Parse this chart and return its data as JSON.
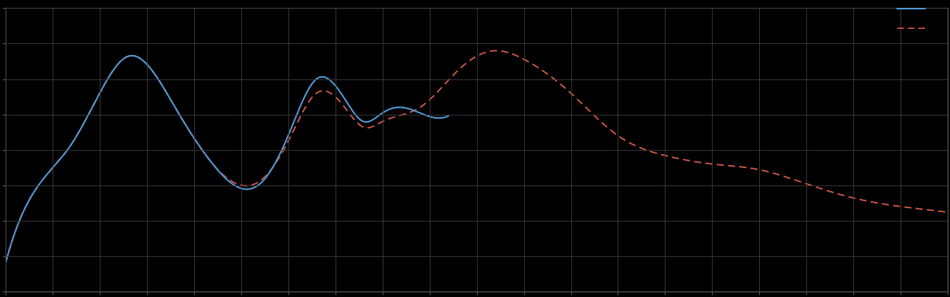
{
  "background_color": "#000000",
  "plot_bg_color": "#000000",
  "grid_color": "#3a3a3a",
  "axis_color": "#555555",
  "tick_color": "#555555",
  "blue_line_color": "#4a90c8",
  "red_line_color": "#cc5544",
  "xlim": [
    0,
    100
  ],
  "ylim": [
    0,
    10
  ],
  "figsize": [
    12.09,
    3.78
  ],
  "dpi": 100,
  "nx_grid": 20,
  "ny_grid": 8
}
